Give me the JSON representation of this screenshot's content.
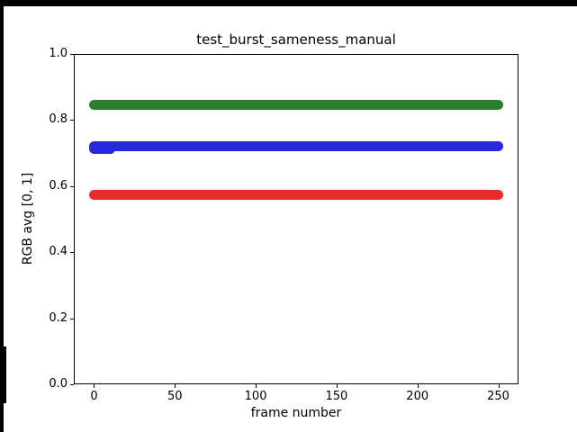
{
  "window": {
    "background_color": "#000000",
    "figure_background_color": "#ffffff"
  },
  "chart_data": {
    "type": "scatter",
    "title": "test_burst_sameness_manual",
    "xlabel": "frame number",
    "ylabel": "RGB avg [0, 1]",
    "xlim": [
      -12.5,
      262.5
    ],
    "ylim": [
      0.0,
      1.0
    ],
    "xticks": {
      "values": [
        0,
        50,
        100,
        150,
        200,
        250
      ],
      "labels": [
        "0",
        "50",
        "100",
        "150",
        "200",
        "250"
      ]
    },
    "yticks": {
      "values": [
        0.0,
        0.2,
        0.4,
        0.6,
        0.8,
        1.0
      ],
      "labels": [
        "0.0",
        "0.2",
        "0.4",
        "0.6",
        "0.8",
        "1.0"
      ]
    },
    "grid": false,
    "legend": false,
    "x_start": 0,
    "x_end": 250,
    "point_count": 251,
    "marker_note": "dense round markers forming thick flat bands, one point per frame",
    "series": [
      {
        "name": "green-channel",
        "color": "#2b7e2b",
        "value": 0.847
      },
      {
        "name": "blue-channel",
        "color": "#2828dd",
        "value": 0.722,
        "dip": {
          "x_start": 0,
          "x_end": 10,
          "value": 0.712
        }
      },
      {
        "name": "red-channel",
        "color": "#e82c2c",
        "value": 0.574
      }
    ]
  }
}
